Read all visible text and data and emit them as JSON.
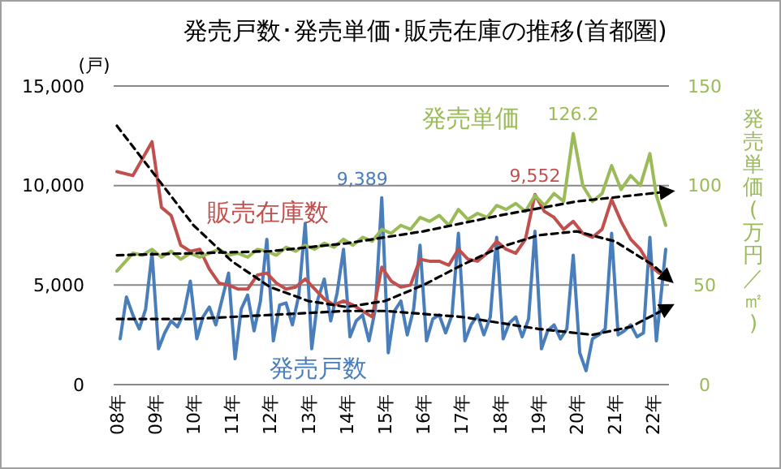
{
  "chart_data": {
    "type": "line",
    "title": "発売戸数･発売単価･販売在庫の推移(首都圏)",
    "ylabel": "(戸)",
    "y2label": "発売単価(万円／㎡)",
    "xlim": [
      "2007-12",
      "2022-06"
    ],
    "xticks": [
      {
        "value": "2008-01",
        "label": "08年"
      },
      {
        "value": "2009-01",
        "label": "09年"
      },
      {
        "value": "2010-01",
        "label": "10年"
      },
      {
        "value": "2011-01",
        "label": "11年"
      },
      {
        "value": "2012-01",
        "label": "12年"
      },
      {
        "value": "2013-01",
        "label": "13年"
      },
      {
        "value": "2014-01",
        "label": "14年"
      },
      {
        "value": "2015-01",
        "label": "15年"
      },
      {
        "value": "2016-01",
        "label": "16年"
      },
      {
        "value": "2017-01",
        "label": "17年"
      },
      {
        "value": "2018-01",
        "label": "18年"
      },
      {
        "value": "2019-01",
        "label": "19年"
      },
      {
        "value": "2020-01",
        "label": "20年"
      },
      {
        "value": "2021-01",
        "label": "21年"
      },
      {
        "value": "2022-01",
        "label": "22年"
      }
    ],
    "ylim": [
      0,
      15000
    ],
    "yticks": [
      0,
      {
        "value": 5000,
        "label": "5,000"
      },
      {
        "value": 10000,
        "label": "10,000"
      },
      {
        "value": 15000,
        "label": "15,000"
      }
    ],
    "y2lim": [
      0,
      150
    ],
    "y2ticks": [
      0,
      50,
      100,
      150
    ],
    "grid": "y",
    "marker": "none",
    "series": [
      {
        "name": "発売戸数",
        "color": "#4a7ebb",
        "x": [
          "2008-02",
          "2008-04",
          "2008-06",
          "2008-08",
          "2008-10",
          "2008-12",
          "2009-02",
          "2009-04",
          "2009-06",
          "2009-08",
          "2009-10",
          "2009-12",
          "2010-02",
          "2010-04",
          "2010-06",
          "2010-08",
          "2010-10",
          "2010-12",
          "2011-02",
          "2011-04",
          "2011-06",
          "2011-08",
          "2011-10",
          "2011-12",
          "2012-02",
          "2012-04",
          "2012-06",
          "2012-08",
          "2012-10",
          "2012-12",
          "2013-02",
          "2013-04",
          "2013-06",
          "2013-08",
          "2013-10",
          "2013-12",
          "2014-02",
          "2014-04",
          "2014-06",
          "2014-08",
          "2014-10",
          "2014-12",
          "2015-02",
          "2015-04",
          "2015-06",
          "2015-08",
          "2015-10",
          "2015-12",
          "2016-02",
          "2016-04",
          "2016-06",
          "2016-08",
          "2016-10",
          "2016-12",
          "2017-02",
          "2017-04",
          "2017-06",
          "2017-08",
          "2017-10",
          "2017-12",
          "2018-02",
          "2018-04",
          "2018-06",
          "2018-08",
          "2018-10",
          "2018-12",
          "2019-02",
          "2019-04",
          "2019-06",
          "2019-08",
          "2019-10",
          "2019-12",
          "2020-02",
          "2020-04",
          "2020-06",
          "2020-08",
          "2020-10",
          "2020-12",
          "2021-02",
          "2021-04",
          "2021-06",
          "2021-08",
          "2021-10",
          "2021-12",
          "2022-02",
          "2022-05"
        ],
        "value_labels": [
          null,
          null,
          null,
          null,
          null,
          null,
          null,
          null,
          null,
          null,
          null,
          null,
          null,
          null,
          null,
          null,
          null,
          null,
          null,
          null,
          null,
          null,
          null,
          null,
          null,
          null,
          null,
          null,
          null,
          null,
          null,
          null,
          null,
          null,
          null,
          null,
          null,
          null,
          null,
          null,
          null,
          "9,389",
          null,
          null,
          null,
          null,
          null,
          null,
          null,
          null,
          null,
          null,
          null,
          null,
          null,
          null,
          null,
          null,
          null,
          null,
          null,
          null,
          null,
          null,
          null,
          null,
          null,
          null,
          null,
          null,
          null,
          null,
          null,
          null,
          null,
          null,
          null,
          null,
          null,
          null,
          null,
          null,
          null,
          null,
          null,
          null
        ],
        "values": [
          2300,
          4400,
          3500,
          2800,
          3800,
          6600,
          1800,
          2600,
          3200,
          2900,
          3600,
          5200,
          2300,
          3400,
          3900,
          3000,
          4300,
          5600,
          1300,
          3800,
          4500,
          2700,
          4200,
          7300,
          2200,
          4000,
          4100,
          3000,
          4500,
          8100,
          1800,
          4300,
          5300,
          3200,
          4600,
          6800,
          2400,
          3200,
          3500,
          2200,
          3800,
          9389,
          1600,
          3700,
          4200,
          2500,
          3800,
          7000,
          2200,
          3300,
          3500,
          2600,
          3500,
          7600,
          2200,
          3000,
          3500,
          2500,
          3400,
          7400,
          2300,
          3100,
          3400,
          2400,
          3300,
          7700,
          1800,
          2700,
          3000,
          2300,
          2800,
          6500,
          1600,
          700,
          2300,
          2500,
          2800,
          7600,
          2500,
          2700,
          3000,
          2400,
          2600,
          7400,
          2200,
          6800
        ]
      },
      {
        "name": "販売在庫数",
        "color": "#c0504d",
        "x": [
          "2008-01",
          "2008-06",
          "2008-12",
          "2009-03",
          "2009-06",
          "2009-09",
          "2009-12",
          "2010-03",
          "2010-06",
          "2010-09",
          "2010-12",
          "2011-03",
          "2011-06",
          "2011-09",
          "2011-12",
          "2012-03",
          "2012-06",
          "2012-09",
          "2012-12",
          "2013-03",
          "2013-06",
          "2013-09",
          "2013-12",
          "2014-03",
          "2014-06",
          "2014-09",
          "2014-12",
          "2015-03",
          "2015-06",
          "2015-09",
          "2015-12",
          "2016-03",
          "2016-06",
          "2016-09",
          "2016-12",
          "2017-03",
          "2017-06",
          "2017-09",
          "2017-12",
          "2018-03",
          "2018-06",
          "2018-09",
          "2018-12",
          "2019-03",
          "2019-06",
          "2019-09",
          "2019-12",
          "2020-03",
          "2020-06",
          "2020-09",
          "2020-12",
          "2021-03",
          "2021-06",
          "2021-09",
          "2021-12",
          "2022-03",
          "2022-05"
        ],
        "value_labels": [
          null,
          null,
          null,
          null,
          null,
          null,
          null,
          null,
          null,
          null,
          null,
          null,
          null,
          null,
          null,
          null,
          null,
          null,
          null,
          null,
          null,
          null,
          null,
          null,
          null,
          null,
          null,
          null,
          null,
          null,
          null,
          null,
          null,
          null,
          null,
          null,
          null,
          null,
          null,
          null,
          null,
          null,
          "9,552",
          null,
          null,
          null,
          null,
          null,
          null,
          null,
          null,
          null,
          null,
          null,
          null,
          null,
          null
        ],
        "values": [
          10700,
          10500,
          12200,
          8900,
          8500,
          7000,
          6700,
          6800,
          5800,
          5100,
          5000,
          4800,
          4800,
          5500,
          5600,
          5100,
          4800,
          4900,
          5300,
          4800,
          4300,
          4000,
          4200,
          4000,
          3700,
          3400,
          5900,
          5200,
          4900,
          5000,
          6300,
          6200,
          6200,
          6000,
          6800,
          6300,
          6200,
          6600,
          7200,
          6800,
          6600,
          7300,
          9552,
          8700,
          8400,
          7800,
          8200,
          7600,
          7400,
          7800,
          9300,
          8200,
          7300,
          6800,
          6000,
          5600,
          5500
        ]
      },
      {
        "name": "発売単価",
        "color": "#9bbb59",
        "axis": "y2",
        "x": [
          "2008-01",
          "2008-06",
          "2008-09",
          "2008-12",
          "2009-03",
          "2009-06",
          "2009-09",
          "2009-12",
          "2010-03",
          "2010-06",
          "2010-09",
          "2010-12",
          "2011-03",
          "2011-06",
          "2011-09",
          "2011-12",
          "2012-03",
          "2012-06",
          "2012-09",
          "2012-12",
          "2013-03",
          "2013-06",
          "2013-09",
          "2013-12",
          "2014-03",
          "2014-06",
          "2014-09",
          "2014-12",
          "2015-03",
          "2015-06",
          "2015-09",
          "2015-12",
          "2016-03",
          "2016-06",
          "2016-09",
          "2016-12",
          "2017-03",
          "2017-06",
          "2017-09",
          "2017-12",
          "2018-03",
          "2018-06",
          "2018-09",
          "2018-12",
          "2019-03",
          "2019-06",
          "2019-09",
          "2019-12",
          "2020-03",
          "2020-06",
          "2020-09",
          "2020-12",
          "2021-03",
          "2021-06",
          "2021-09",
          "2021-12",
          "2022-02",
          "2022-05"
        ],
        "value_labels": [
          null,
          null,
          null,
          null,
          null,
          null,
          null,
          null,
          null,
          null,
          null,
          null,
          null,
          null,
          null,
          null,
          null,
          null,
          null,
          null,
          null,
          null,
          null,
          null,
          null,
          null,
          null,
          null,
          null,
          null,
          null,
          null,
          null,
          null,
          null,
          null,
          null,
          null,
          null,
          null,
          null,
          null,
          null,
          null,
          null,
          null,
          null,
          "126.2",
          null,
          null,
          null,
          null,
          null,
          null,
          null,
          null,
          null,
          null
        ],
        "values": [
          57,
          66,
          65,
          68,
          64,
          67,
          63,
          66,
          64,
          66,
          68,
          65,
          66,
          64,
          68,
          67,
          65,
          69,
          67,
          70,
          68,
          71,
          69,
          73,
          70,
          74,
          72,
          78,
          76,
          80,
          78,
          84,
          82,
          85,
          80,
          88,
          83,
          86,
          84,
          90,
          88,
          91,
          87,
          95,
          90,
          96,
          92,
          126.2,
          100,
          92,
          96,
          110,
          98,
          105,
          100,
          116,
          95,
          80
        ]
      },
      {
        "color": "#000000",
        "line_style": "dashed",
        "x": [
          "2008-01",
          "2009-01",
          "2010-01",
          "2011-01",
          "2012-01",
          "2013-01",
          "2014-01",
          "2015-01",
          "2016-01",
          "2017-01",
          "2018-01",
          "2019-01",
          "2020-01",
          "2021-01",
          "2022-01",
          "2022-06"
        ],
        "values": [
          13000,
          10500,
          8000,
          6200,
          4900,
          4200,
          3900,
          4200,
          5000,
          6000,
          6900,
          7500,
          7700,
          7200,
          6000,
          5300
        ]
      },
      {
        "color": "#000000",
        "line_style": "dashed",
        "axis": "y2",
        "x": [
          "2008-01",
          "2010-01",
          "2012-01",
          "2014-01",
          "2016-01",
          "2018-01",
          "2020-01",
          "2022-06"
        ],
        "values": [
          65,
          66,
          67,
          71,
          77,
          85,
          92,
          97
        ]
      },
      {
        "color": "#000000",
        "line_style": "dashed",
        "x": [
          "2008-01",
          "2010-01",
          "2012-01",
          "2014-01",
          "2015-01",
          "2017-01",
          "2019-01",
          "2020-06",
          "2021-06",
          "2022-06"
        ],
        "values": [
          3300,
          3300,
          3500,
          3700,
          3700,
          3400,
          2800,
          2500,
          2900,
          3900
        ]
      }
    ]
  }
}
